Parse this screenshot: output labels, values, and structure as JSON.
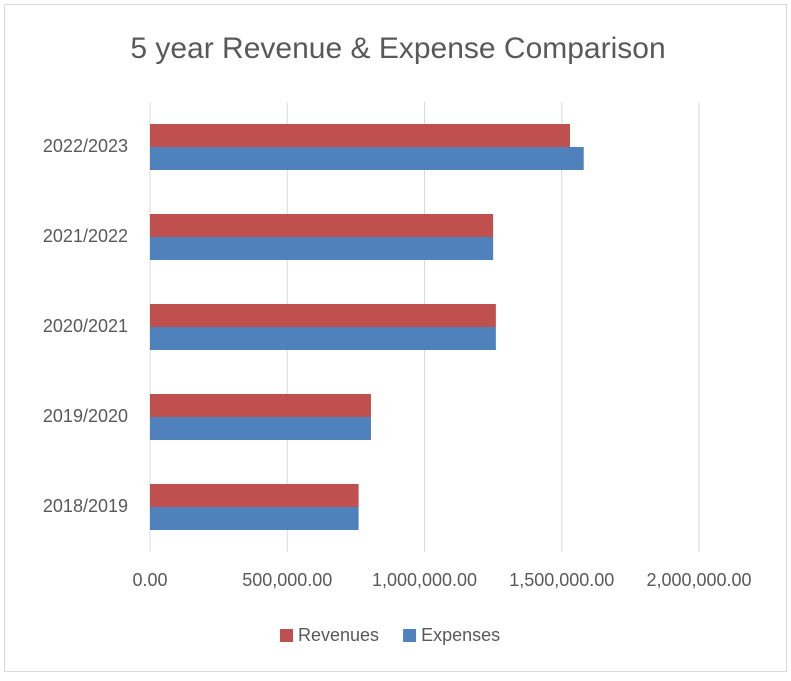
{
  "chart_data": {
    "type": "barh",
    "title": "5 year Revenue & Expense Comparison",
    "categories": [
      "2018/2019",
      "2019/2020",
      "2020/2021",
      "2021/2022",
      "2022/2023"
    ],
    "series": [
      {
        "name": "Revenues",
        "color": "#c0504d",
        "values": [
          760000,
          805000,
          1260000,
          1250000,
          1530000
        ]
      },
      {
        "name": "Expenses",
        "color": "#4f81bd",
        "values": [
          760000,
          805000,
          1260000,
          1250000,
          1580000
        ]
      }
    ],
    "xlim": [
      0,
      2000000
    ],
    "xticks": [
      {
        "value": 0,
        "label": "0.00"
      },
      {
        "value": 500000,
        "label": "500,000.00"
      },
      {
        "value": 1000000,
        "label": "1,000,000.00"
      },
      {
        "value": 1500000,
        "label": "1,500,000.00"
      },
      {
        "value": 2000000,
        "label": "2,000,000.00"
      }
    ],
    "grid": true,
    "legend": "bottom"
  }
}
